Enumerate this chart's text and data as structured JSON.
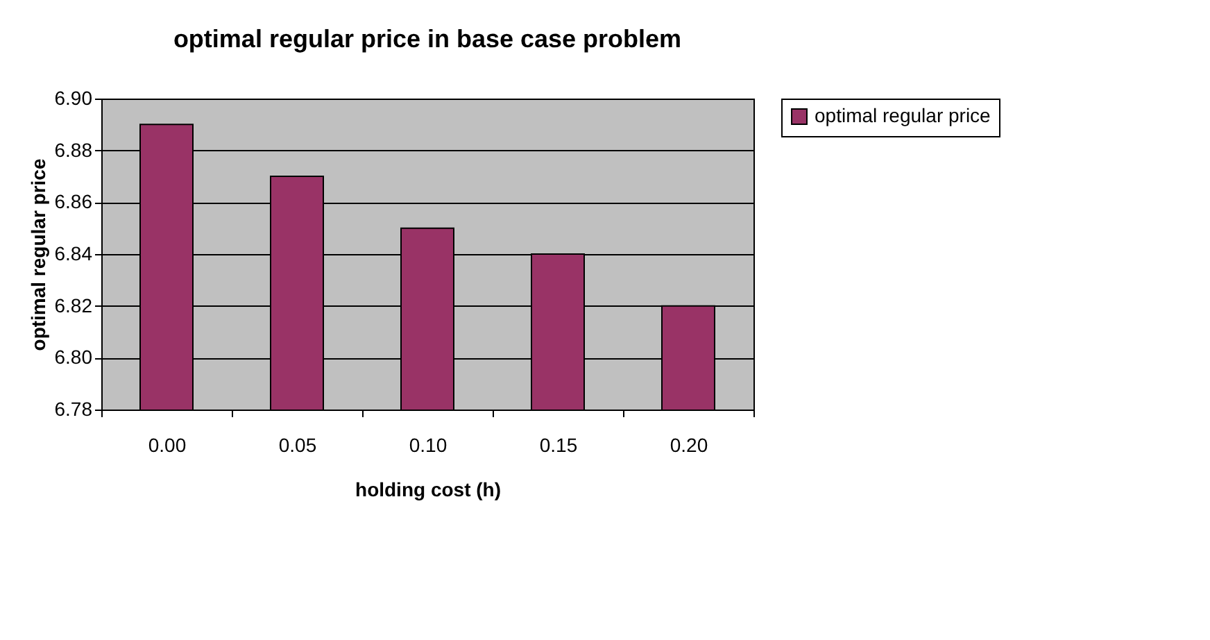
{
  "chart_data": {
    "type": "bar",
    "title": "optimal regular price in base case problem",
    "xlabel": "holding cost (h)",
    "ylabel": "optimal regular price",
    "categories": [
      "0.00",
      "0.05",
      "0.10",
      "0.15",
      "0.20"
    ],
    "series": [
      {
        "name": "optimal regular price",
        "color": "#993366",
        "values": [
          6.89,
          6.87,
          6.85,
          6.84,
          6.82
        ]
      }
    ],
    "ylim": [
      6.78,
      6.9
    ],
    "yticks": [
      6.78,
      {
        "value": 6.8,
        "label": "6.80"
      },
      6.82,
      6.84,
      6.86,
      6.88,
      {
        "value": 6.9,
        "label": "6.90"
      }
    ],
    "grid": "y",
    "legend": "right"
  }
}
